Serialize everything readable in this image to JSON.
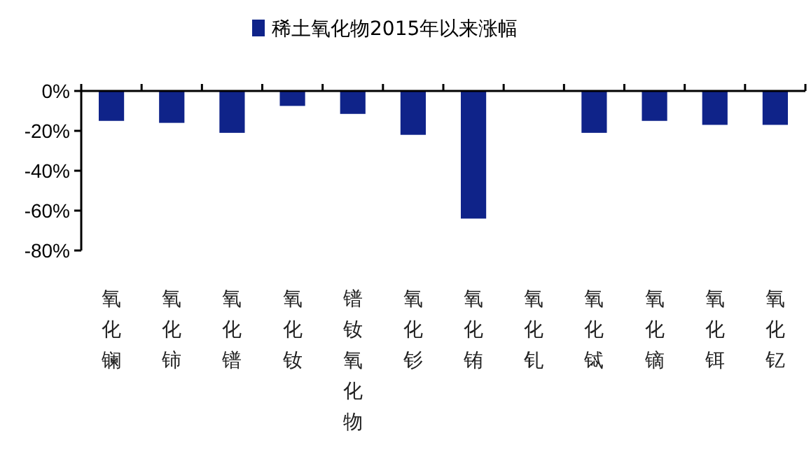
{
  "chart_data": {
    "type": "bar",
    "categories": [
      "氧化镧",
      "氧化铈",
      "氧化镨",
      "氧化钕",
      "镨钕氧化物",
      "氧化钐",
      "氧化铕",
      "氧化钆",
      "氧化铽",
      "氧化镝",
      "氧化铒",
      "氧化钇"
    ],
    "series": [
      {
        "name": "稀土氧化物2015年以来涨幅",
        "color": "#0f2389",
        "values": [
          -15,
          -16,
          -21,
          -7.5,
          -11.5,
          -22,
          -64,
          0,
          -21,
          -15,
          -17,
          -17
        ]
      }
    ],
    "ylim": [
      -80,
      0
    ],
    "yticks": [
      {
        "value": -80,
        "label": "-80%"
      },
      {
        "value": -60,
        "label": "-60%"
      },
      {
        "value": -40,
        "label": "-40%"
      },
      {
        "value": -20,
        "label": "-20%"
      },
      {
        "value": 0,
        "label": "0%"
      }
    ],
    "legend": "top",
    "grid": false
  }
}
